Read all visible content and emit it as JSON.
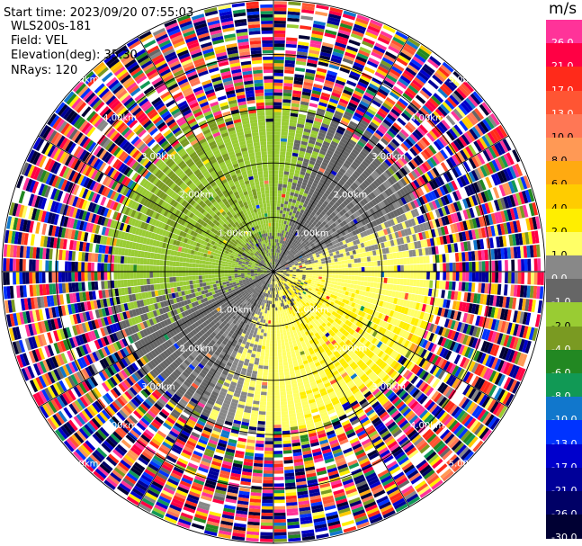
{
  "header": {
    "start_time": "Start time: 2023/09/20 07:55:03",
    "instrument": "WLS200s-181",
    "field": "Field: VEL",
    "elevation": "Elevation(deg): 35.30",
    "nrays": "NRays: 120"
  },
  "colorbar": {
    "unit": "m/s",
    "levels": [
      {
        "label": "26.0",
        "color": "#ff3399"
      },
      {
        "label": "21.0",
        "color": "#ff0044"
      },
      {
        "label": "17.0",
        "color": "#ff2a1a"
      },
      {
        "label": "13.0",
        "color": "#ff5533"
      },
      {
        "label": "10.0",
        "color": "#ff7755"
      },
      {
        "label": "8.0",
        "color": "#ff9955"
      },
      {
        "label": "6.0",
        "color": "#ffaa11"
      },
      {
        "label": "4.0",
        "color": "#ffcc00"
      },
      {
        "label": "2.0",
        "color": "#ffee00"
      },
      {
        "label": "1.0",
        "color": "#ffff66"
      },
      {
        "label": "0.0",
        "color": "#888888"
      },
      {
        "label": "-1.0",
        "color": "#666666"
      },
      {
        "label": "-2.0",
        "color": "#99cc33"
      },
      {
        "label": "-4.0",
        "color": "#7a9a22"
      },
      {
        "label": "-6.0",
        "color": "#228822"
      },
      {
        "label": "-8.0",
        "color": "#119955"
      },
      {
        "label": "-10.0",
        "color": "#1177cc"
      },
      {
        "label": "-13.0",
        "color": "#0033ff"
      },
      {
        "label": "-17.0",
        "color": "#0000cc"
      },
      {
        "label": "-21.0",
        "color": "#000099"
      },
      {
        "label": "-26.0",
        "color": "#000066"
      },
      {
        "label": "-30.0",
        "color": "#000033"
      }
    ]
  },
  "chart_data": {
    "type": "heatmap",
    "subtype": "polar-ppi",
    "field": "VEL",
    "unit": "m/s",
    "n_rays": 120,
    "range_rings_km": [
      1,
      2,
      3,
      4,
      5
    ],
    "ring_labels": [
      "1.00km",
      "2.00km",
      "3.00km",
      "4.00km",
      "5.00km"
    ],
    "max_range_km": 5.0,
    "spoke_angles_deg": [
      0,
      30,
      60,
      90,
      120,
      150,
      180,
      210,
      240,
      270,
      300,
      330
    ],
    "vmin": -30.0,
    "vmax": 30.0,
    "clean_radius_km": 3.0,
    "radial_velocity_pattern": {
      "approaching_side": "north-west",
      "receding_side": "south-east",
      "near_range_speed_ms": 2.0
    }
  }
}
